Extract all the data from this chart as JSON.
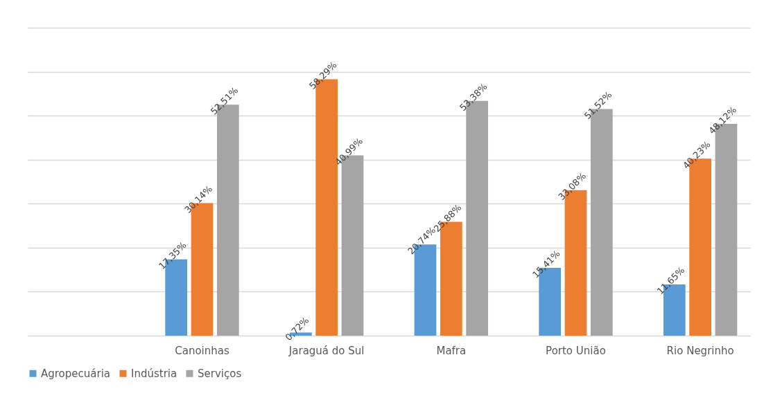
{
  "chart_data": {
    "type": "bar",
    "categories": [
      null,
      "Canoinhas",
      "Jaraguá do Sul",
      "Mafra",
      "Porto União",
      "Rio Negrinho"
    ],
    "series": [
      {
        "name": "Agropecuária",
        "color": "#5b9bd5",
        "values": [
          null,
          17.35,
          0.72,
          20.74,
          15.41,
          11.65
        ],
        "value_labels": [
          null,
          "17,35%",
          "0,72%",
          "20,74%",
          "15,41%",
          "11,65%"
        ]
      },
      {
        "name": "Indústria",
        "color": "#ed7d31",
        "values": [
          null,
          30.14,
          58.29,
          25.88,
          33.08,
          40.23
        ],
        "value_labels": [
          null,
          "30,14%",
          "58,29%",
          "25,88%",
          "33,08%",
          "40,23%"
        ]
      },
      {
        "name": "Serviços",
        "color": "#a5a5a5",
        "values": [
          null,
          52.51,
          40.99,
          53.38,
          51.52,
          48.12
        ],
        "value_labels": [
          null,
          "52,51%",
          "40,99%",
          "53,38%",
          "51,52%",
          "48,12%"
        ]
      }
    ],
    "ylim": [
      0,
      70
    ],
    "yticks": [
      {
        "value": 0,
        "label": null
      },
      {
        "value": 10,
        "label": null
      },
      {
        "value": 20,
        "label": null
      },
      {
        "value": 30,
        "label": null
      },
      {
        "value": 40,
        "label": null
      },
      {
        "value": 50,
        "label": null
      },
      {
        "value": 60,
        "label": null
      },
      {
        "value": 70,
        "label": null
      }
    ],
    "tick_labels": "x",
    "grid": "y",
    "legend": "bottom"
  }
}
